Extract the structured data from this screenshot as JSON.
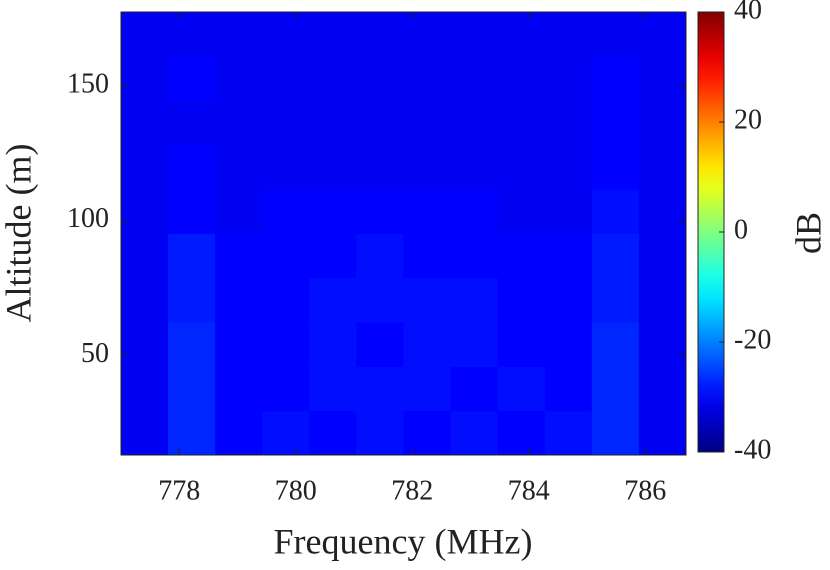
{
  "chart_data": {
    "type": "heatmap",
    "xlabel": "Frequency (MHz)",
    "ylabel": "Altitude (m)",
    "colorbar_label": "dB",
    "xlim": [
      777,
      786.7
    ],
    "xticks": [
      778,
      780,
      782,
      784,
      786
    ],
    "ylim": [
      13,
      177.5
    ],
    "yticks": [
      50,
      100,
      150
    ],
    "clim": [
      -40,
      40
    ],
    "cticks": [
      -40,
      -20,
      0,
      20,
      40
    ],
    "colormap": "jet",
    "z": [
      [
        -31,
        -27,
        -30,
        -29,
        -30,
        -29,
        -30,
        -29,
        -30,
        -29,
        -27,
        -31
      ],
      [
        -31,
        -27,
        -30,
        -30,
        -29,
        -29,
        -29,
        -30,
        -29,
        -30,
        -27,
        -31
      ],
      [
        -31,
        -27,
        -30,
        -30,
        -29,
        -30,
        -29,
        -29,
        -30,
        -30,
        -27,
        -31
      ],
      [
        -31,
        -28,
        -30,
        -30,
        -29,
        -29,
        -29,
        -29,
        -30,
        -30,
        -28,
        -31
      ],
      [
        -31,
        -28,
        -30,
        -30,
        -30,
        -29,
        -30,
        -30,
        -30,
        -30,
        -28,
        -31
      ],
      [
        -31,
        -30,
        -31,
        -30,
        -30,
        -30,
        -30,
        -30,
        -31,
        -31,
        -29,
        -31
      ],
      [
        -31,
        -30,
        -31,
        -31,
        -31,
        -31,
        -31,
        -31,
        -31,
        -31,
        -30,
        -31
      ],
      [
        -31,
        -31,
        -31,
        -31,
        -31,
        -31,
        -31,
        -31,
        -31,
        -31,
        -30,
        -31
      ],
      [
        -31,
        -30,
        -31,
        -31,
        -31,
        -31,
        -31,
        -31,
        -31,
        -31,
        -30,
        -31
      ],
      [
        -31,
        -31,
        -31,
        -31,
        -31,
        -31,
        -31,
        -31,
        -31,
        -31,
        -31,
        -31
      ]
    ]
  }
}
